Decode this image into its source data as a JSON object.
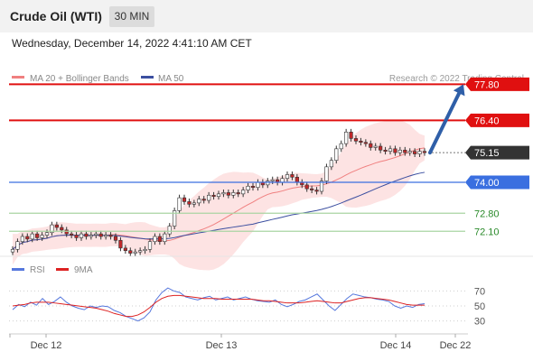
{
  "header": {
    "title": "Crude Oil (WTI)",
    "timeframe": "30 MIN"
  },
  "date_line": "Wednesday, December 14, 2022 4:41:10 AM CET",
  "legend": {
    "bb_label": "MA 20 + Bollinger Bands",
    "ma50_label": "MA 50",
    "source": "Research © 2022 Trading Central"
  },
  "rsi_legend": {
    "rsi_label": "RSI",
    "ma_label": "9MA"
  },
  "colors": {
    "resistance": "#e01010",
    "support_blue": "#3a6fe0",
    "support_green": "#2a8a2a",
    "current": "#333333",
    "arrow": "#2f5fa8",
    "bollinger_fill": "#fde3e3",
    "ma20": "#f08080",
    "ma50": "#3c4fa0",
    "rsi": "#5577dd",
    "rsi_ma": "#dd2222"
  },
  "chart_data": [
    {
      "type": "candlestick",
      "title": "Crude Oil (WTI)",
      "timeframe": "30 MIN",
      "ylim": [
        71.2,
        78.2
      ],
      "x_tick_labels": [
        "Dec 12",
        "Dec 13",
        "Dec 14",
        "Dec 22"
      ],
      "levels": [
        {
          "label": "77.80",
          "value": 77.8,
          "kind": "resistance"
        },
        {
          "label": "76.40",
          "value": 76.4,
          "kind": "resistance"
        },
        {
          "label": "75.15",
          "value": 75.15,
          "kind": "current"
        },
        {
          "label": "74.00",
          "value": 74.0,
          "kind": "support"
        },
        {
          "label": "72.80",
          "value": 72.8,
          "kind": "support-minor"
        },
        {
          "label": "72.10",
          "value": 72.1,
          "kind": "support-minor"
        }
      ],
      "close_series": [
        71.4,
        71.7,
        71.9,
        71.8,
        72.0,
        71.85,
        71.95,
        72.05,
        72.35,
        72.25,
        72.15,
        72.0,
        71.95,
        71.85,
        72.0,
        71.9,
        71.95,
        72.0,
        71.9,
        71.95,
        71.9,
        71.75,
        71.45,
        71.35,
        71.25,
        71.3,
        71.35,
        71.4,
        71.7,
        71.9,
        71.7,
        72.0,
        72.3,
        72.9,
        73.4,
        73.25,
        73.15,
        73.2,
        73.35,
        73.3,
        73.5,
        73.45,
        73.55,
        73.6,
        73.5,
        73.6,
        73.55,
        73.7,
        73.85,
        73.8,
        74.0,
        73.9,
        74.05,
        74.1,
        74.0,
        74.15,
        74.3,
        74.2,
        74.0,
        73.9,
        73.75,
        73.7,
        73.65,
        74.05,
        74.6,
        74.85,
        75.3,
        75.5,
        75.95,
        75.7,
        75.6,
        75.55,
        75.5,
        75.35,
        75.4,
        75.25,
        75.2,
        75.3,
        75.15,
        75.25,
        75.15,
        75.2,
        75.1,
        75.2,
        75.15
      ],
      "bollinger": {
        "upper_start": 72.6,
        "lower_start": 71.4
      },
      "forecast_arrow": {
        "from": 75.15,
        "to": 77.8
      }
    },
    {
      "type": "line",
      "title": "RSI",
      "ylim": [
        15,
        85
      ],
      "y_tick_labels": [
        "70",
        "50",
        "30"
      ],
      "y_ticks": [
        70,
        50,
        30
      ],
      "series": [
        {
          "name": "RSI",
          "values": [
            45,
            52,
            49,
            55,
            51,
            60,
            52,
            56,
            62,
            55,
            50,
            47,
            45,
            50,
            48,
            50,
            49,
            44,
            41,
            36,
            33,
            30,
            34,
            42,
            58,
            68,
            74,
            70,
            68,
            62,
            60,
            58,
            61,
            63,
            58,
            60,
            62,
            58,
            60,
            62,
            59,
            57,
            56,
            55,
            58,
            52,
            49,
            52,
            56,
            58,
            62,
            66,
            58,
            50,
            44,
            52,
            60,
            66,
            64,
            62,
            61,
            59,
            58,
            56,
            50,
            47,
            50,
            48,
            52,
            53
          ]
        },
        {
          "name": "9MA",
          "values": [
            50,
            51,
            52,
            54,
            55,
            55,
            55,
            54,
            53,
            52,
            51,
            50,
            49,
            48,
            47,
            45,
            43,
            40,
            38,
            36,
            36,
            38,
            42,
            48,
            55,
            60,
            63,
            64,
            64,
            63,
            62,
            61,
            60,
            60,
            60,
            59,
            59,
            59,
            59,
            59,
            59,
            58,
            57,
            57,
            56,
            55,
            54,
            54,
            54,
            55,
            56,
            57,
            56,
            55,
            54,
            54,
            56,
            58,
            60,
            61,
            61,
            60,
            59,
            58,
            56,
            54,
            52,
            51,
            51,
            51
          ]
        }
      ]
    }
  ]
}
